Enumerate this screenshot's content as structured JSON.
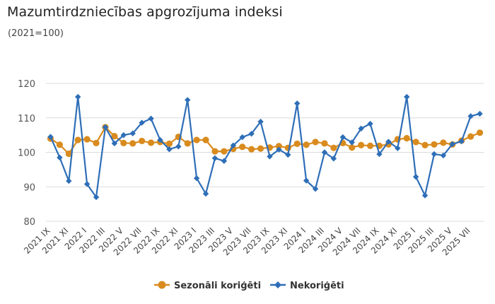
{
  "header": {
    "title": "Mazumtirdzniecības apgrozījuma indeksi",
    "subtitle": "(2021=100)"
  },
  "chart_data": {
    "type": "line",
    "title": "Mazumtirdzniecības apgrozījuma indeksi",
    "subtitle": "(2021=100)",
    "xlabel": "",
    "ylabel": "",
    "ylim": [
      80,
      120
    ],
    "yticks": [
      80,
      90,
      100,
      110,
      120
    ],
    "grid": true,
    "legend_position": "bottom",
    "categories": [
      "2021 IX",
      "2021 X",
      "2021 XI",
      "2021 XII",
      "2022 I",
      "2022 II",
      "2022 III",
      "2022 IV",
      "2022 V",
      "2022 VI",
      "2022 VII",
      "2022 VIII",
      "2022 IX",
      "2022 X",
      "2022 XI",
      "2022 XII",
      "2023 I",
      "2023 II",
      "2023 III",
      "2023 IV",
      "2023 V",
      "2023 VI",
      "2023 VII",
      "2023 VIII",
      "2023 IX",
      "2023 X",
      "2023 XI",
      "2023 XII",
      "2024 I",
      "2024 II",
      "2024 III",
      "2024 IV",
      "2024 V",
      "2024 VI",
      "2024 VII",
      "2024 VIII",
      "2024 IX",
      "2024 X",
      "2024 XI",
      "2024 XII",
      "2025 I",
      "2025 II",
      "2025 III",
      "2025 IV",
      "2025 V",
      "2025 VI",
      "2025 VII",
      "2025 VIII"
    ],
    "tick_labels": [
      "2021 IX",
      "2021 XI",
      "2022 I",
      "2022 III",
      "2022 V",
      "2022 VII",
      "2022 IX",
      "2022 XI",
      "2023 I",
      "2023 III",
      "2023 V",
      "2023 VII",
      "2023 IX",
      "2023 XI",
      "2024 I",
      "2024 III",
      "2024 V",
      "2024 VII",
      "2024 IX",
      "2024 XI",
      "2025 I",
      "2025 III",
      "2025 V",
      "2025 VII"
    ],
    "series": [
      {
        "name": "Sezonāli koriģēti",
        "color": "#d98b1e",
        "marker": "circle",
        "values": [
          104.0,
          102.2,
          99.6,
          103.6,
          103.8,
          102.7,
          107.3,
          104.7,
          102.7,
          102.6,
          103.3,
          102.8,
          103.0,
          102.5,
          104.5,
          102.6,
          103.6,
          103.6,
          100.3,
          100.3,
          101.0,
          101.6,
          100.9,
          101.1,
          101.4,
          101.8,
          101.3,
          102.5,
          102.2,
          103.0,
          102.6,
          101.3,
          102.7,
          101.4,
          102.1,
          101.9,
          101.9,
          102.3,
          103.8,
          104.1,
          103.0,
          102.1,
          102.3,
          102.8,
          102.3,
          103.4,
          104.6,
          105.7
        ]
      },
      {
        "name": "Nekoriģēti",
        "color": "#2e6eb7",
        "marker": "diamond",
        "values": [
          104.5,
          98.5,
          91.7,
          116.1,
          90.8,
          87.0,
          107.3,
          102.6,
          105.0,
          105.5,
          108.6,
          109.8,
          103.6,
          100.9,
          101.7,
          115.2,
          92.5,
          88.0,
          98.3,
          97.5,
          102.0,
          104.4,
          105.4,
          108.9,
          98.8,
          100.8,
          99.3,
          114.2,
          91.8,
          89.4,
          100.0,
          98.2,
          104.4,
          102.9,
          106.9,
          108.3,
          99.5,
          103.1,
          101.2,
          116.1,
          92.9,
          87.5,
          99.5,
          99.1,
          102.4,
          103.2,
          110.5,
          111.2
        ]
      }
    ]
  }
}
